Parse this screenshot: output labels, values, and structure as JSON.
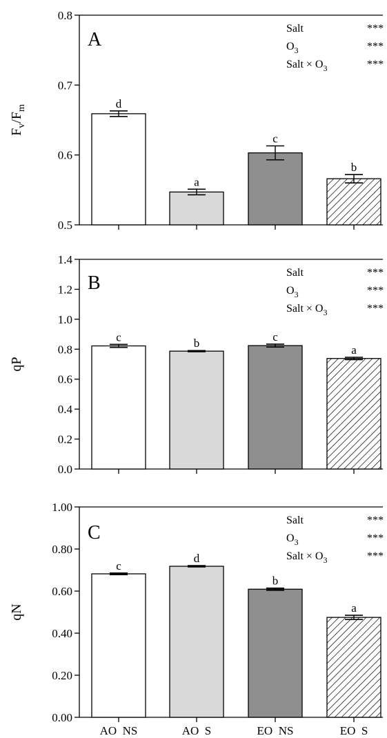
{
  "chart_data": [
    {
      "type": "bar",
      "panel": "A",
      "categories": [
        "AO  NS",
        "AO  S",
        "EO  NS",
        "EO  S"
      ],
      "values": [
        0.659,
        0.547,
        0.603,
        0.566
      ],
      "errors": [
        0.004,
        0.004,
        0.01,
        0.006
      ],
      "letters": [
        "d",
        "a",
        "c",
        "b"
      ],
      "ylabel": "Fv/Fm",
      "ylabel_main": "F",
      "ylabel_sub1": "v",
      "ylabel_mid": "/F",
      "ylabel_sub2": "m",
      "ylim": [
        0.5,
        0.8
      ],
      "yticks": [
        0.5,
        0.6,
        0.7,
        0.8
      ],
      "tick_labels": [
        "0.5",
        "0.6",
        "0.7",
        "0.8"
      ],
      "stats": [
        {
          "label": "Salt",
          "sig": "***"
        },
        {
          "label": "O3",
          "label_main": "O",
          "label_sub": "3",
          "sig": "***"
        },
        {
          "label": "Salt × O3",
          "label_main": "Salt × O",
          "label_sub": "3",
          "sig": "***"
        }
      ]
    },
    {
      "type": "bar",
      "panel": "B",
      "categories": [
        "AO  NS",
        "AO  S",
        "EO  NS",
        "EO  S"
      ],
      "values": [
        0.822,
        0.787,
        0.824,
        0.738
      ],
      "errors": [
        0.01,
        0.004,
        0.01,
        0.008
      ],
      "letters": [
        "c",
        "b",
        "c",
        "a"
      ],
      "ylabel": "qP",
      "ylim": [
        0.0,
        1.4
      ],
      "yticks": [
        0.0,
        0.2,
        0.4,
        0.6,
        0.8,
        1.0,
        1.2,
        1.4
      ],
      "tick_labels": [
        "0.0",
        "0.2",
        "0.4",
        "0.6",
        "0.8",
        "1.0",
        "1.2",
        "1.4"
      ],
      "stats": [
        {
          "label": "Salt",
          "sig": "***"
        },
        {
          "label": "O3",
          "label_main": "O",
          "label_sub": "3",
          "sig": "***"
        },
        {
          "label": "Salt × O3",
          "label_main": "Salt × O",
          "label_sub": "3",
          "sig": "***"
        }
      ]
    },
    {
      "type": "bar",
      "panel": "C",
      "categories": [
        "AO  NS",
        "AO  S",
        "EO  NS",
        "EO  S"
      ],
      "values": [
        0.682,
        0.718,
        0.609,
        0.475
      ],
      "errors": [
        0.004,
        0.003,
        0.005,
        0.01
      ],
      "letters": [
        "c",
        "d",
        "b",
        "a"
      ],
      "ylabel": "qN",
      "ylim": [
        0.0,
        1.0
      ],
      "yticks": [
        0.0,
        0.2,
        0.4,
        0.6,
        0.8,
        1.0
      ],
      "tick_labels": [
        "0.00",
        "0.20",
        "0.40",
        "0.60",
        "0.80",
        "1.00"
      ],
      "stats": [
        {
          "label": "Salt",
          "sig": "***"
        },
        {
          "label": "O3",
          "label_main": "O",
          "label_sub": "3",
          "sig": "***"
        },
        {
          "label": "Salt × O3",
          "label_main": "Salt × O",
          "label_sub": "3",
          "sig": "***"
        }
      ]
    }
  ],
  "colors": {
    "bar_fills": [
      "#ffffff",
      "#d9d9d9",
      "#8f8f8f",
      "hatch"
    ],
    "stroke": "#000000"
  }
}
